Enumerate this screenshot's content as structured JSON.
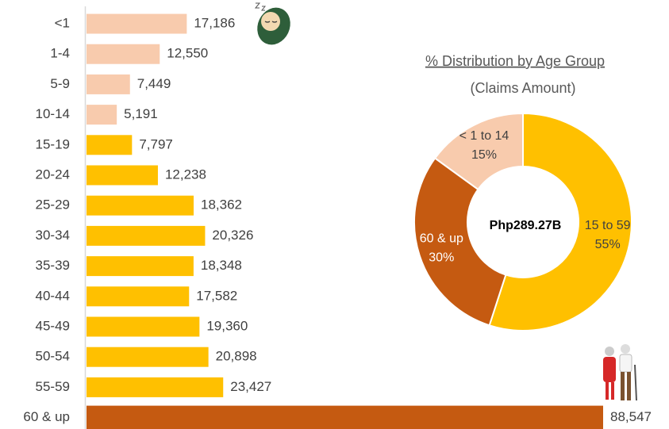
{
  "chart_data": [
    {
      "type": "bar",
      "categories": [
        "<1",
        "1-4",
        "5-9",
        "10-14",
        "15-19",
        "20-24",
        "25-29",
        "30-34",
        "35-39",
        "40-44",
        "45-49",
        "50-54",
        "55-59",
        "60 & up"
      ],
      "values": [
        17186,
        12550,
        7449,
        5191,
        7797,
        12238,
        18362,
        20326,
        18348,
        17582,
        19360,
        20898,
        23427,
        88547
      ],
      "value_labels": [
        "17,186",
        "12,550",
        "7,449",
        "5,191",
        "7,797",
        "12,238",
        "18,362",
        "20,326",
        "18,348",
        "17,582",
        "19,360",
        "20,898",
        "23,427",
        "88,547"
      ],
      "colors": [
        "#f8cbad",
        "#f8cbad",
        "#f8cbad",
        "#f8cbad",
        "#ffc000",
        "#ffc000",
        "#ffc000",
        "#ffc000",
        "#ffc000",
        "#ffc000",
        "#ffc000",
        "#ffc000",
        "#ffc000",
        "#c55a11"
      ]
    },
    {
      "type": "pie",
      "title": "% Distribution by Age Group",
      "subtitle": "(Claims Amount)",
      "center_label": "Php289.27B",
      "categories": [
        "15 to 59",
        "60 & up",
        "< 1 to 14"
      ],
      "values": [
        55,
        30,
        15
      ],
      "value_labels": [
        "55%",
        "30%",
        "15%"
      ],
      "colors": [
        "#ffc000",
        "#c55a11",
        "#f8cbad"
      ],
      "label_colors": [
        "#404040",
        "#ffffff",
        "#404040"
      ]
    }
  ]
}
